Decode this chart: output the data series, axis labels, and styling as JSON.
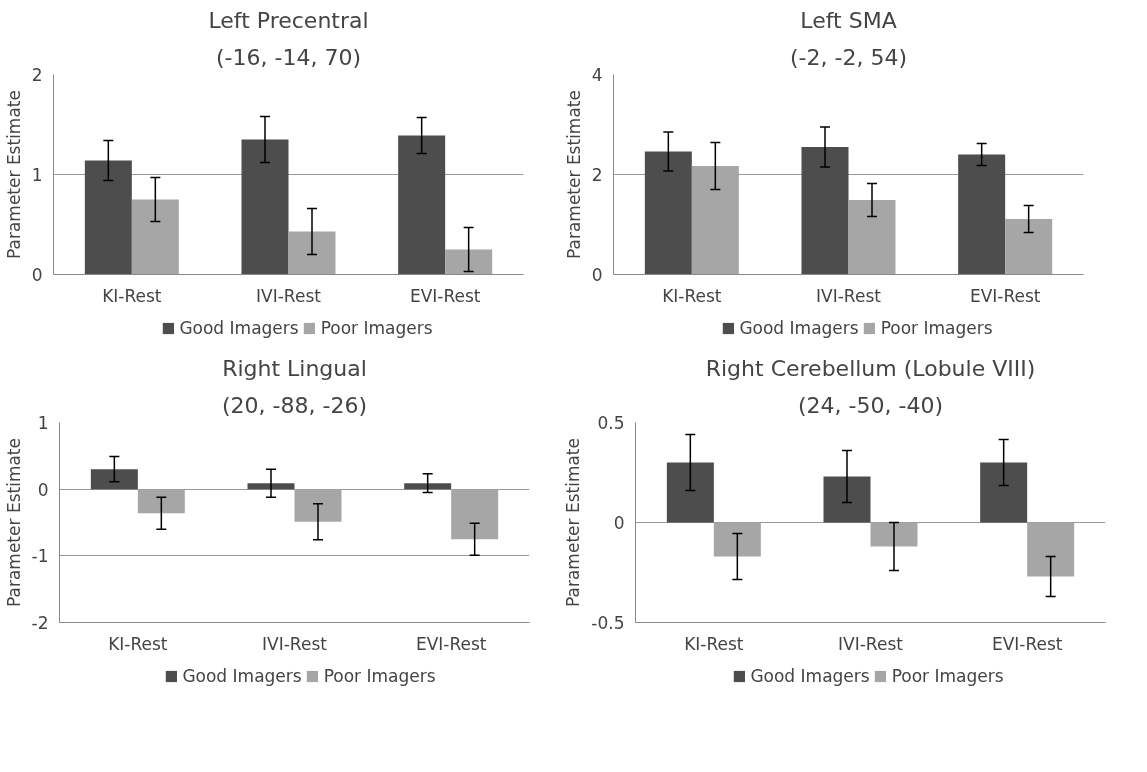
{
  "chart_data": [
    {
      "type": "bar",
      "title": "Left Precentral",
      "subtitle": "(-16, -14, 70)",
      "ylabel": "Parameter Estimate",
      "categories": [
        "KI-Rest",
        "IVI-Rest",
        "EVI-Rest"
      ],
      "series": [
        {
          "name": "Good Imagers",
          "color": "#4d4d4d",
          "values": [
            1.14,
            1.35,
            1.39
          ],
          "errors": [
            0.2,
            0.23,
            0.18
          ]
        },
        {
          "name": "Poor Imagers",
          "color": "#a6a6a6",
          "values": [
            0.75,
            0.43,
            0.25
          ],
          "errors": [
            0.22,
            0.23,
            0.22
          ]
        }
      ],
      "ylim": [
        0,
        2
      ],
      "yticks": [
        0,
        1,
        2
      ],
      "grid": "y",
      "legend": "bottom"
    },
    {
      "type": "bar",
      "title": "Left SMA",
      "subtitle": "(-2, -2, 54)",
      "ylabel": "Parameter Estimate",
      "categories": [
        "KI-Rest",
        "IVI-Rest",
        "EVI-Rest"
      ],
      "series": [
        {
          "name": "Good Imagers",
          "color": "#4d4d4d",
          "values": [
            2.46,
            2.55,
            2.4
          ],
          "errors": [
            0.39,
            0.4,
            0.22
          ]
        },
        {
          "name": "Poor Imagers",
          "color": "#a6a6a6",
          "values": [
            2.17,
            1.49,
            1.11
          ],
          "errors": [
            0.47,
            0.33,
            0.27
          ]
        }
      ],
      "ylim": [
        0,
        4
      ],
      "yticks": [
        0,
        2,
        4
      ],
      "grid": "y",
      "legend": "bottom"
    },
    {
      "type": "bar",
      "title": "Right Lingual",
      "subtitle": "(20, -88, -26)",
      "ylabel": "Parameter Estimate",
      "categories": [
        "KI-Rest",
        "IVI-Rest",
        "EVI-Rest"
      ],
      "series": [
        {
          "name": "Good Imagers",
          "color": "#4d4d4d",
          "values": [
            0.3,
            0.09,
            0.09
          ],
          "errors": [
            0.19,
            0.21,
            0.14
          ]
        },
        {
          "name": "Poor Imagers",
          "color": "#a6a6a6",
          "values": [
            -0.36,
            -0.49,
            -0.75
          ],
          "errors": [
            0.24,
            0.27,
            0.24
          ]
        }
      ],
      "ylim": [
        -2,
        1
      ],
      "yticks": [
        -2,
        -1,
        0,
        1
      ],
      "grid": "y",
      "legend": "bottom"
    },
    {
      "type": "bar",
      "title": "Right Cerebellum (Lobule VIII)",
      "subtitle": "(24, -50, -40)",
      "ylabel": "Parameter Estimate",
      "categories": [
        "KI-Rest",
        "IVI-Rest",
        "EVI-Rest"
      ],
      "series": [
        {
          "name": "Good Imagers",
          "color": "#4d4d4d",
          "values": [
            0.3,
            0.23,
            0.3
          ],
          "errors": [
            0.14,
            0.13,
            0.115
          ]
        },
        {
          "name": "Poor Imagers",
          "color": "#a6a6a6",
          "values": [
            -0.17,
            -0.12,
            -0.27
          ],
          "errors": [
            0.115,
            0.12,
            0.1
          ]
        }
      ],
      "ylim": [
        -0.5,
        0.5
      ],
      "yticks": [
        -0.5,
        0,
        0.5
      ],
      "grid": "y",
      "legend": "bottom"
    }
  ]
}
